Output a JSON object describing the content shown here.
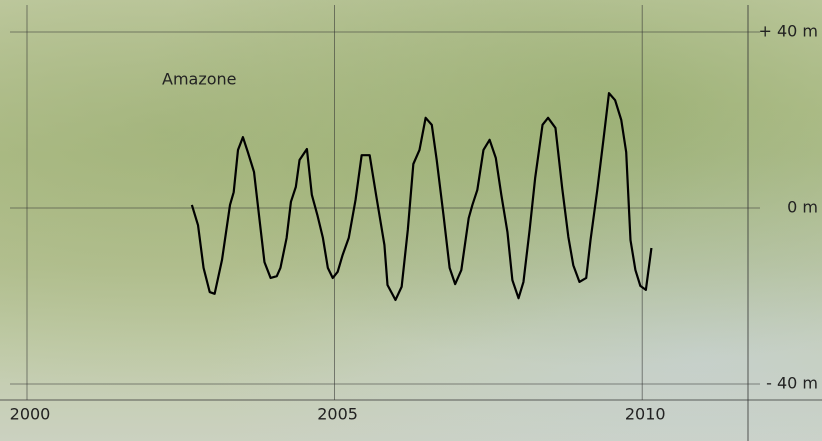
{
  "chart_data": {
    "type": "line",
    "annotation": "Amazone",
    "color": "#000000",
    "x": [
      2002.68,
      2002.78,
      2002.87,
      2002.97,
      2003.05,
      2003.17,
      2003.3,
      2003.36,
      2003.43,
      2003.51,
      2003.59,
      2003.69,
      2003.78,
      2003.86,
      2003.96,
      2004.06,
      2004.12,
      2004.22,
      2004.29,
      2004.37,
      2004.43,
      2004.55,
      2004.63,
      2004.72,
      2004.81,
      2004.89,
      2004.97,
      2005.05,
      2005.13,
      2005.23,
      2005.34,
      2005.44,
      2005.57,
      2005.68,
      2005.81,
      2005.86,
      2005.99,
      2006.09,
      2006.19,
      2006.28,
      2006.38,
      2006.48,
      2006.58,
      2006.66,
      2006.77,
      2006.87,
      2006.96,
      2007.06,
      2007.18,
      2007.24,
      2007.32,
      2007.42,
      2007.52,
      2007.62,
      2007.71,
      2007.81,
      2007.89,
      2007.99,
      2008.07,
      2008.17,
      2008.26,
      2008.38,
      2008.47,
      2008.59,
      2008.7,
      2008.8,
      2008.88,
      2008.98,
      2009.09,
      2009.16,
      2009.27,
      2009.37,
      2009.46,
      2009.56,
      2009.66,
      2009.74,
      2009.81,
      2009.89,
      2009.97,
      2010.06,
      2010.15
    ],
    "values": [
      0.7,
      -3.9,
      -13.6,
      -19.1,
      -19.5,
      -11.8,
      0.7,
      3.6,
      13.2,
      16.1,
      12.7,
      8.2,
      -2.7,
      -12.3,
      -15.9,
      -15.5,
      -13.6,
      -6.8,
      1.4,
      4.8,
      10.9,
      13.4,
      3.0,
      -1.6,
      -6.8,
      -13.6,
      -15.9,
      -14.5,
      -10.7,
      -6.8,
      1.8,
      12.0,
      12.0,
      2.5,
      -8.4,
      -17.5,
      -20.9,
      -17.9,
      -5.0,
      10.0,
      13.2,
      20.5,
      18.9,
      10.9,
      -1.6,
      -13.6,
      -17.3,
      -14.1,
      -2.3,
      0.7,
      4.1,
      13.2,
      15.5,
      11.4,
      3.0,
      -5.5,
      -16.4,
      -20.5,
      -16.8,
      -5.0,
      6.8,
      18.9,
      20.5,
      18.2,
      4.5,
      -6.6,
      -13.0,
      -16.8,
      -15.9,
      -7.3,
      4.1,
      15.5,
      26.1,
      24.5,
      20.0,
      12.7,
      -7.3,
      -14.1,
      -17.7,
      -18.6,
      -9.1
    ],
    "xlim": [
      2000,
      2011.72
    ],
    "xticks": [
      2000,
      2005,
      2010
    ],
    "ylim": [
      -40,
      40
    ],
    "yticks": [
      {
        "value": 40,
        "label": "+ 40 m"
      },
      {
        "value": 0,
        "label": "0 m"
      },
      {
        "value": -40,
        "label": "- 40 m"
      }
    ],
    "grid": true
  }
}
